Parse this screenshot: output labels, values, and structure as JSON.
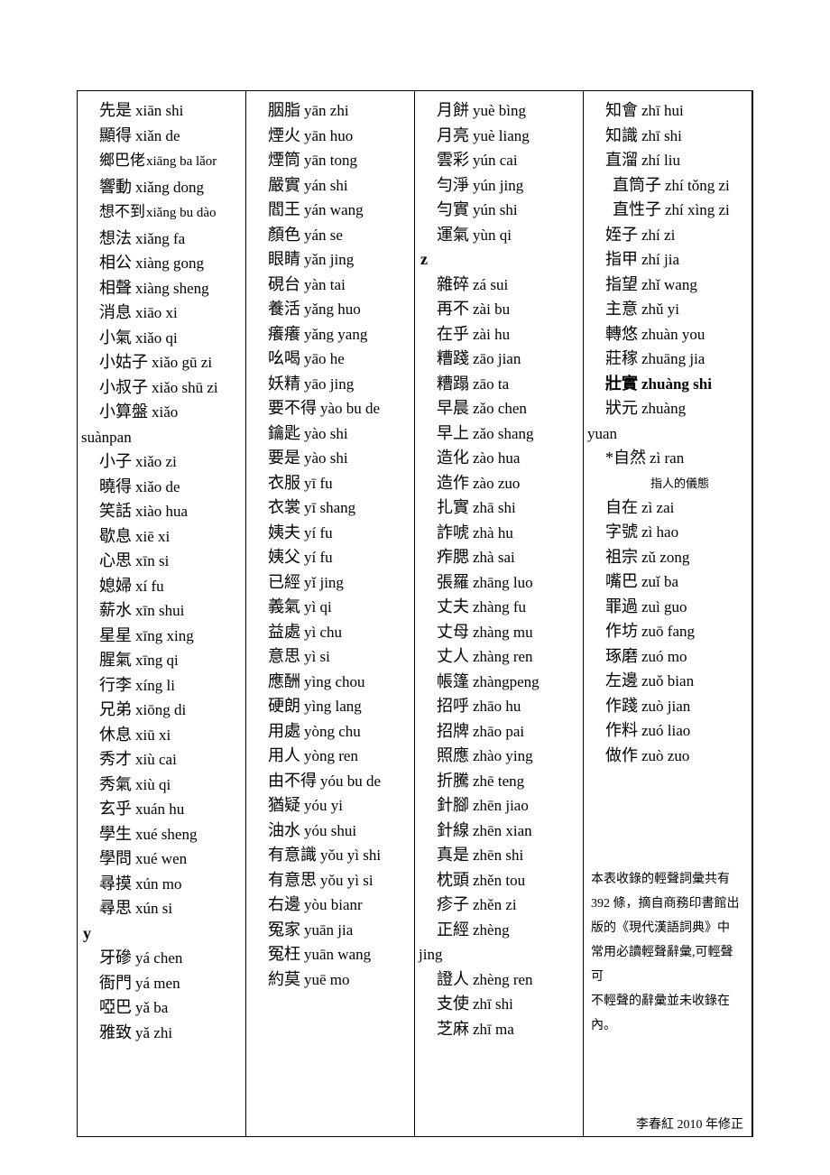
{
  "columns": [
    {
      "items": [
        {
          "type": "entry",
          "hanzi": "先是",
          "pinyin": "xiān shi",
          "indent": true
        },
        {
          "type": "entry",
          "hanzi": "顯得",
          "pinyin": "xiǎn de",
          "indent": true
        },
        {
          "type": "entry",
          "hanzi": "鄉巴佬",
          "pinyin": "xiāng ba lǎor",
          "indent": true,
          "small": true
        },
        {
          "type": "entry",
          "hanzi": "響動",
          "pinyin": "xiǎng dong",
          "indent": true
        },
        {
          "type": "entry",
          "hanzi": "想不到",
          "pinyin": "xiǎng bu dào",
          "indent": true,
          "small": true
        },
        {
          "type": "entry",
          "hanzi": "想法",
          "pinyin": "xiǎng fa",
          "indent": true
        },
        {
          "type": "entry",
          "hanzi": "相公",
          "pinyin": "xiàng gong",
          "indent": true
        },
        {
          "type": "entry",
          "hanzi": "相聲",
          "pinyin": "xiàng sheng",
          "indent": true
        },
        {
          "type": "entry",
          "hanzi": "消息",
          "pinyin": "xiāo xi",
          "indent": true
        },
        {
          "type": "entry",
          "hanzi": "小氣",
          "pinyin": "xiǎo qi",
          "indent": true
        },
        {
          "type": "entry",
          "hanzi": "小姑子",
          "pinyin": "xiǎo gū zi",
          "indent": true
        },
        {
          "type": "entry",
          "hanzi": "小叔子",
          "pinyin": "xiǎo shū zi",
          "indent": true
        },
        {
          "type": "entry",
          "hanzi": "小算盤",
          "pinyin": "xiǎo",
          "indent": true
        },
        {
          "type": "cont",
          "text": "suànpan"
        },
        {
          "type": "entry",
          "hanzi": "小子",
          "pinyin": "xiǎo zi",
          "indent": true
        },
        {
          "type": "entry",
          "hanzi": "曉得",
          "pinyin": "xiǎo de",
          "indent": true
        },
        {
          "type": "entry",
          "hanzi": "笑話",
          "pinyin": "xiào hua",
          "indent": true
        },
        {
          "type": "entry",
          "hanzi": "歇息",
          "pinyin": "xiē xi",
          "indent": true
        },
        {
          "type": "entry",
          "hanzi": "心思",
          "pinyin": "xīn si",
          "indent": true
        },
        {
          "type": "entry",
          "hanzi": "媳婦",
          "pinyin": "xí fu",
          "indent": true
        },
        {
          "type": "entry",
          "hanzi": "薪水",
          "pinyin": "xīn shui",
          "indent": true
        },
        {
          "type": "entry",
          "hanzi": "星星",
          "pinyin": "xīng xing",
          "indent": true
        },
        {
          "type": "entry",
          "hanzi": "腥氣",
          "pinyin": "xīng qi",
          "indent": true
        },
        {
          "type": "entry",
          "hanzi": "行李",
          "pinyin": "xíng li",
          "indent": true
        },
        {
          "type": "entry",
          "hanzi": "兄弟",
          "pinyin": "xiōng di",
          "indent": true
        },
        {
          "type": "entry",
          "hanzi": "休息",
          "pinyin": "xiū xi",
          "indent": true
        },
        {
          "type": "entry",
          "hanzi": "秀才",
          "pinyin": "xiù cai",
          "indent": true
        },
        {
          "type": "entry",
          "hanzi": "秀氣",
          "pinyin": "xiù qi",
          "indent": true
        },
        {
          "type": "entry",
          "hanzi": "玄乎",
          "pinyin": "xuán hu",
          "indent": true
        },
        {
          "type": "entry",
          "hanzi": "學生",
          "pinyin": "xué sheng",
          "indent": true
        },
        {
          "type": "entry",
          "hanzi": "學問",
          "pinyin": "xué wen",
          "indent": true
        },
        {
          "type": "entry",
          "hanzi": "尋摸",
          "pinyin": "xún mo",
          "indent": true
        },
        {
          "type": "entry",
          "hanzi": "尋思",
          "pinyin": "xún si",
          "indent": true
        },
        {
          "type": "head",
          "text": "y"
        },
        {
          "type": "entry",
          "hanzi": "牙磣",
          "pinyin": "yá chen",
          "indent": true
        },
        {
          "type": "entry",
          "hanzi": "衙門",
          "pinyin": "yá men",
          "indent": true
        },
        {
          "type": "entry",
          "hanzi": "啞巴",
          "pinyin": "yǎ ba",
          "indent": true
        },
        {
          "type": "entry",
          "hanzi": "雅致",
          "pinyin": "yǎ zhi",
          "indent": true
        }
      ]
    },
    {
      "items": [
        {
          "type": "entry",
          "hanzi": "胭脂",
          "pinyin": "yān zhi",
          "indent": true
        },
        {
          "type": "entry",
          "hanzi": "煙火",
          "pinyin": "yān huo",
          "indent": true
        },
        {
          "type": "entry",
          "hanzi": "煙筒",
          "pinyin": "yān tong",
          "indent": true
        },
        {
          "type": "entry",
          "hanzi": "嚴實",
          "pinyin": "yán shi",
          "indent": true
        },
        {
          "type": "entry",
          "hanzi": "閻王",
          "pinyin": "yán wang",
          "indent": true
        },
        {
          "type": "entry",
          "hanzi": "顏色",
          "pinyin": "yán se",
          "indent": true
        },
        {
          "type": "entry",
          "hanzi": "眼睛",
          "pinyin": "yǎn jing",
          "indent": true
        },
        {
          "type": "entry",
          "hanzi": "硯台",
          "pinyin": "yàn tai",
          "indent": true
        },
        {
          "type": "entry",
          "hanzi": "養活",
          "pinyin": "yǎng huo",
          "indent": true
        },
        {
          "type": "entry",
          "hanzi": "癢癢",
          "pinyin": "yǎng yang",
          "indent": true
        },
        {
          "type": "entry",
          "hanzi": "吆喝",
          "pinyin": "yāo he",
          "indent": true
        },
        {
          "type": "entry",
          "hanzi": "妖精",
          "pinyin": "yāo jing",
          "indent": true
        },
        {
          "type": "entry",
          "hanzi": "要不得",
          "pinyin": "yào bu de",
          "indent": true
        },
        {
          "type": "entry",
          "hanzi": "鑰匙",
          "pinyin": "yào shi",
          "indent": true
        },
        {
          "type": "entry",
          "hanzi": "要是",
          "pinyin": "yào shi",
          "indent": true
        },
        {
          "type": "entry",
          "hanzi": "衣服",
          "pinyin": "yī fu",
          "indent": true
        },
        {
          "type": "entry",
          "hanzi": "衣裳",
          "pinyin": "yī shang",
          "indent": true
        },
        {
          "type": "entry",
          "hanzi": "姨夫",
          "pinyin": "yí fu",
          "indent": true
        },
        {
          "type": "entry",
          "hanzi": "姨父",
          "pinyin": "yí fu",
          "indent": true
        },
        {
          "type": "entry",
          "hanzi": "已經",
          "pinyin": "yǐ jing",
          "indent": true
        },
        {
          "type": "entry",
          "hanzi": "義氣",
          "pinyin": "yì qi",
          "indent": true
        },
        {
          "type": "entry",
          "hanzi": "益處",
          "pinyin": "yì chu",
          "indent": true
        },
        {
          "type": "entry",
          "hanzi": "意思",
          "pinyin": "yì si",
          "indent": true
        },
        {
          "type": "entry",
          "hanzi": "應酬",
          "pinyin": "yìng chou",
          "indent": true
        },
        {
          "type": "entry",
          "hanzi": "硬朗",
          "pinyin": "yìng lang",
          "indent": true
        },
        {
          "type": "entry",
          "hanzi": "用處",
          "pinyin": "yòng chu",
          "indent": true
        },
        {
          "type": "entry",
          "hanzi": "用人",
          "pinyin": "yòng ren",
          "indent": true
        },
        {
          "type": "entry",
          "hanzi": "由不得",
          "pinyin": "yóu bu de",
          "indent": true
        },
        {
          "type": "entry",
          "hanzi": "猶疑",
          "pinyin": "yóu yi",
          "indent": true
        },
        {
          "type": "entry",
          "hanzi": "油水",
          "pinyin": "yóu shui",
          "indent": true
        },
        {
          "type": "entry",
          "hanzi": "有意識",
          "pinyin": "yǒu yì shi",
          "indent": true
        },
        {
          "type": "entry",
          "hanzi": "有意思",
          "pinyin": "yǒu yì si",
          "indent": true
        },
        {
          "type": "entry",
          "hanzi": "右邊",
          "pinyin": "yòu bianr",
          "indent": true
        },
        {
          "type": "entry",
          "hanzi": "冤家",
          "pinyin": "yuān jia",
          "indent": true
        },
        {
          "type": "entry",
          "hanzi": "冤枉",
          "pinyin": "yuān wang",
          "indent": true
        },
        {
          "type": "entry",
          "hanzi": "約莫",
          "pinyin": "yuē mo",
          "indent": true
        }
      ]
    },
    {
      "items": [
        {
          "type": "entry",
          "hanzi": "月餅",
          "pinyin": "yuè bìng",
          "indent": true
        },
        {
          "type": "entry",
          "hanzi": "月亮",
          "pinyin": "yuè liang",
          "indent": true
        },
        {
          "type": "entry",
          "hanzi": "雲彩",
          "pinyin": "yún cai",
          "indent": true
        },
        {
          "type": "entry",
          "hanzi": "勻淨",
          "pinyin": "yún jing",
          "indent": true
        },
        {
          "type": "entry",
          "hanzi": "勻實",
          "pinyin": "yún shi",
          "indent": true
        },
        {
          "type": "entry",
          "hanzi": "運氣",
          "pinyin": "yùn qi",
          "indent": true
        },
        {
          "type": "head",
          "text": "z"
        },
        {
          "type": "entry",
          "hanzi": "雜碎",
          "pinyin": "zá sui",
          "indent": true
        },
        {
          "type": "entry",
          "hanzi": "再不",
          "pinyin": "zài bu",
          "indent": true
        },
        {
          "type": "entry",
          "hanzi": "在乎",
          "pinyin": "zài hu",
          "indent": true
        },
        {
          "type": "entry",
          "hanzi": "糟踐",
          "pinyin": "zāo jian",
          "indent": true
        },
        {
          "type": "entry",
          "hanzi": "糟蹋",
          "pinyin": "zāo ta",
          "indent": true
        },
        {
          "type": "entry",
          "hanzi": "早晨",
          "pinyin": "zǎo chen",
          "indent": true
        },
        {
          "type": "entry",
          "hanzi": "早上",
          "pinyin": "zǎo shang",
          "indent": true
        },
        {
          "type": "entry",
          "hanzi": "造化",
          "pinyin": "zào hua",
          "indent": true
        },
        {
          "type": "entry",
          "hanzi": "造作",
          "pinyin": "zào zuo",
          "indent": true
        },
        {
          "type": "entry",
          "hanzi": "扎實",
          "pinyin": "zhā shi",
          "indent": true
        },
        {
          "type": "entry",
          "hanzi": "詐唬",
          "pinyin": "zhà hu",
          "indent": true
        },
        {
          "type": "entry",
          "hanzi": "痄腮",
          "pinyin": "zhà sai",
          "indent": true
        },
        {
          "type": "entry",
          "hanzi": "張羅",
          "pinyin": "zhāng luo",
          "indent": true
        },
        {
          "type": "entry",
          "hanzi": "丈夫",
          "pinyin": "zhàng fu",
          "indent": true
        },
        {
          "type": "entry",
          "hanzi": "丈母",
          "pinyin": "zhàng mu",
          "indent": true
        },
        {
          "type": "entry",
          "hanzi": "丈人",
          "pinyin": "zhàng ren",
          "indent": true
        },
        {
          "type": "entry",
          "hanzi": "帳篷",
          "pinyin": "zhàngpeng",
          "indent": true
        },
        {
          "type": "entry",
          "hanzi": "招呼",
          "pinyin": "zhāo hu",
          "indent": true
        },
        {
          "type": "entry",
          "hanzi": "招牌",
          "pinyin": "zhāo pai",
          "indent": true
        },
        {
          "type": "entry",
          "hanzi": "照應",
          "pinyin": "zhào ying",
          "indent": true
        },
        {
          "type": "entry",
          "hanzi": "折騰",
          "pinyin": "zhē teng",
          "indent": true
        },
        {
          "type": "entry",
          "hanzi": "針腳",
          "pinyin": "zhēn jiao",
          "indent": true
        },
        {
          "type": "entry",
          "hanzi": "針線",
          "pinyin": "zhēn xian",
          "indent": true
        },
        {
          "type": "entry",
          "hanzi": "真是",
          "pinyin": "zhēn shi",
          "indent": true
        },
        {
          "type": "entry",
          "hanzi": "枕頭",
          "pinyin": "zhěn tou",
          "indent": true
        },
        {
          "type": "entry",
          "hanzi": "疹子",
          "pinyin": "zhěn zi",
          "indent": true
        },
        {
          "type": "entry",
          "hanzi": "正經",
          "pinyin": "zhèng",
          "indent": true
        },
        {
          "type": "cont",
          "text": "jing"
        },
        {
          "type": "entry",
          "hanzi": "證人",
          "pinyin": "zhèng ren",
          "indent": true
        },
        {
          "type": "entry",
          "hanzi": "支使",
          "pinyin": "zhī shi",
          "indent": true
        },
        {
          "type": "entry",
          "hanzi": "芝麻",
          "pinyin": "zhī ma",
          "indent": true
        }
      ]
    },
    {
      "items": [
        {
          "type": "entry",
          "hanzi": "知會",
          "pinyin": "zhī hui",
          "indent": true
        },
        {
          "type": "entry",
          "hanzi": "知識",
          "pinyin": "zhī shi",
          "indent": true
        },
        {
          "type": "entry",
          "hanzi": "直溜",
          "pinyin": "zhí liu",
          "indent": true
        },
        {
          "type": "entry",
          "hanzi": "直筒子",
          "pinyin": "zhí tǒng zi",
          "indent": true,
          "extraIndent": true
        },
        {
          "type": "entry",
          "hanzi": "直性子",
          "pinyin": "zhí xìng zi",
          "indent": true,
          "extraIndent": true
        },
        {
          "type": "entry",
          "hanzi": "姪子",
          "pinyin": "zhí zi",
          "indent": true
        },
        {
          "type": "entry",
          "hanzi": "指甲",
          "pinyin": "zhí jia",
          "indent": true
        },
        {
          "type": "entry",
          "hanzi": "指望",
          "pinyin": "zhǐ wang",
          "indent": true
        },
        {
          "type": "entry",
          "hanzi": "主意",
          "pinyin": "zhǔ yi",
          "indent": true
        },
        {
          "type": "entry",
          "hanzi": "轉悠",
          "pinyin": "zhuàn you",
          "indent": true
        },
        {
          "type": "entry",
          "hanzi": "莊稼",
          "pinyin": "zhuāng jia",
          "indent": true
        },
        {
          "type": "entry",
          "hanzi": "壯實",
          "pinyin": "zhuàng shi",
          "indent": true,
          "bold": true
        },
        {
          "type": "entry",
          "hanzi": "狀元",
          "pinyin": "zhuàng",
          "indent": true
        },
        {
          "type": "cont",
          "text": "yuan"
        },
        {
          "type": "entry",
          "hanzi": "*自然",
          "pinyin": "zì ran",
          "indent": true
        },
        {
          "type": "notesmall",
          "text": "指人的儀態"
        },
        {
          "type": "entry",
          "hanzi": "自在",
          "pinyin": "zì zai",
          "indent": true
        },
        {
          "type": "entry",
          "hanzi": "字號",
          "pinyin": "zì hao",
          "indent": true
        },
        {
          "type": "entry",
          "hanzi": "祖宗",
          "pinyin": "zǔ zong",
          "indent": true
        },
        {
          "type": "entry",
          "hanzi": "嘴巴",
          "pinyin": "zuǐ ba",
          "indent": true
        },
        {
          "type": "entry",
          "hanzi": "罪過",
          "pinyin": "zuì guo",
          "indent": true
        },
        {
          "type": "entry",
          "hanzi": "作坊",
          "pinyin": "zuō fang",
          "indent": true
        },
        {
          "type": "entry",
          "hanzi": "琢磨",
          "pinyin": "zuó mo",
          "indent": true
        },
        {
          "type": "entry",
          "hanzi": "左邊",
          "pinyin": "zuǒ bian",
          "indent": true
        },
        {
          "type": "entry",
          "hanzi": "作踐",
          "pinyin": "zuò jian",
          "indent": true
        },
        {
          "type": "entry",
          "hanzi": "作料",
          "pinyin": "zuó liao",
          "indent": true
        },
        {
          "type": "entry",
          "hanzi": "做作",
          "pinyin": "zuò zuo",
          "indent": true
        },
        {
          "type": "blank"
        },
        {
          "type": "blank"
        },
        {
          "type": "blank"
        },
        {
          "type": "blank"
        },
        {
          "type": "note",
          "text": "本表收錄的輕聲詞彙共有"
        },
        {
          "type": "note",
          "text": "392 條，摘自商務印書館出"
        },
        {
          "type": "note",
          "text": "版的《現代漢語詞典》中"
        },
        {
          "type": "note",
          "text": "常用必讀輕聲辭彙,可輕聲可"
        },
        {
          "type": "note",
          "text": "不輕聲的辭彙並未收錄在"
        },
        {
          "type": "note",
          "text": "內。"
        }
      ]
    }
  ],
  "footer": "李春紅 2010 年修正"
}
